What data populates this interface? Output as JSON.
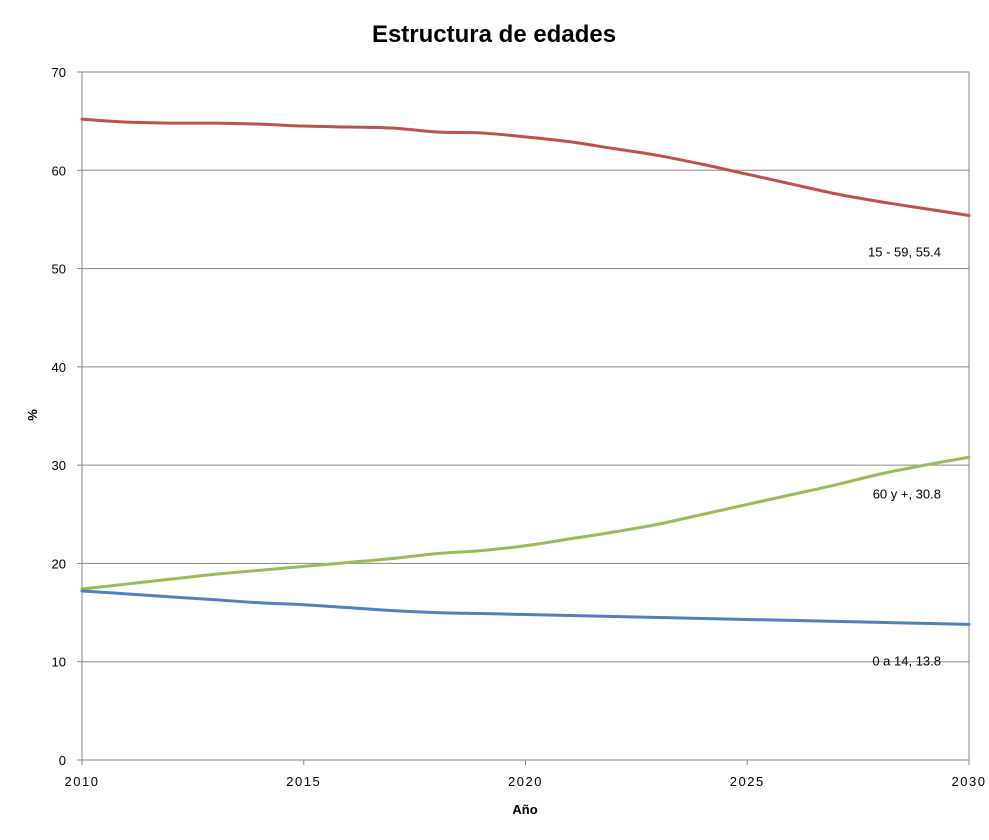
{
  "chart_data": {
    "type": "line",
    "title": "Estructura de edades",
    "xlabel": "Año",
    "ylabel": "%",
    "ylim": [
      0,
      70
    ],
    "y_ticks": [
      "0",
      "10",
      "20",
      "30",
      "40",
      "50",
      "60",
      "70"
    ],
    "x_ticks": [
      "2010",
      "2015",
      "2020",
      "2025",
      "2030"
    ],
    "x": [
      2010,
      2011,
      2012,
      2013,
      2014,
      2015,
      2016,
      2017,
      2018,
      2019,
      2020,
      2021,
      2022,
      2023,
      2024,
      2025,
      2026,
      2027,
      2028,
      2029,
      2030
    ],
    "grid": true,
    "series": [
      {
        "name": "15 - 59",
        "color": "#c0504d",
        "label": "15 - 59, 55.4",
        "values": [
          65.2,
          64.9,
          64.8,
          64.8,
          64.7,
          64.5,
          64.4,
          64.3,
          63.9,
          63.8,
          63.4,
          62.9,
          62.2,
          61.5,
          60.6,
          59.6,
          58.6,
          57.6,
          56.8,
          56.1,
          55.4
        ]
      },
      {
        "name": "60 y +",
        "color": "#9bbb59",
        "label": "60 y +, 30.8",
        "values": [
          17.4,
          17.9,
          18.4,
          18.9,
          19.3,
          19.7,
          20.1,
          20.5,
          21.0,
          21.3,
          21.8,
          22.5,
          23.2,
          24.0,
          25.0,
          26.0,
          27.0,
          28.0,
          29.1,
          30.0,
          30.8
        ]
      },
      {
        "name": "0 a 14",
        "color": "#4f81bd",
        "label": "0 a 14, 13.8",
        "values": [
          17.2,
          16.9,
          16.6,
          16.3,
          16.0,
          15.8,
          15.5,
          15.2,
          15.0,
          14.9,
          14.8,
          14.7,
          14.6,
          14.5,
          14.4,
          14.3,
          14.2,
          14.1,
          14.0,
          13.9,
          13.8
        ]
      }
    ]
  }
}
